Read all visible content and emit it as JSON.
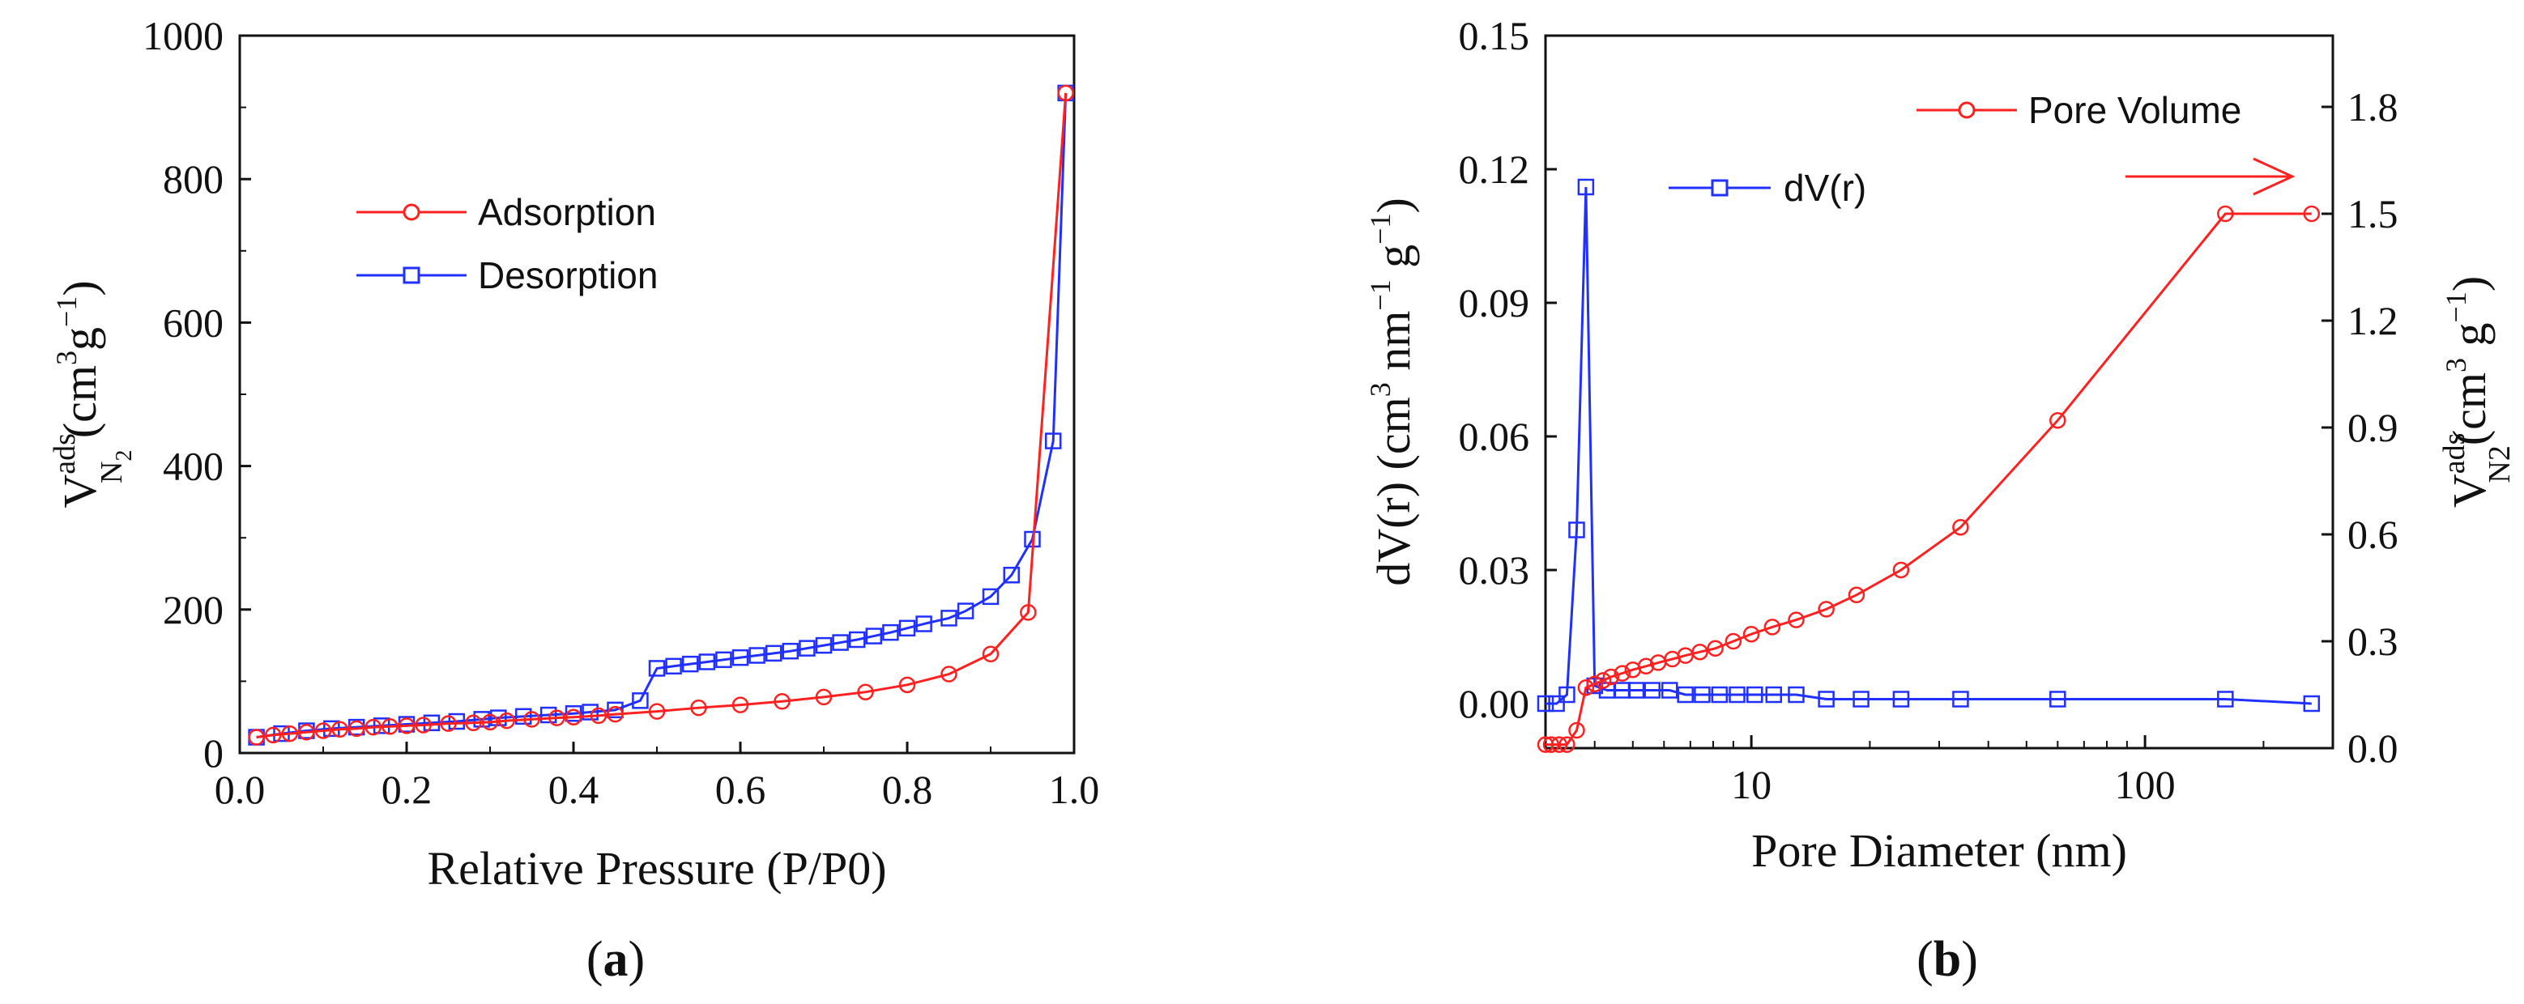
{
  "colors": {
    "adsorption": "#ff2020",
    "desorption": "#2030ff",
    "axis": "#111111"
  },
  "chart_data": [
    {
      "type": "line",
      "panel": "a",
      "panel_label": "(a)",
      "panel_label_parts": {
        "open": "(",
        "letter": "a",
        "close": ")"
      },
      "xlabel": "Relative Pressure (P/P0)",
      "ylabel": {
        "main": "V",
        "sup": "ads",
        "sub": "N",
        "sub2": "2",
        "unit_open": " (cm",
        "unit_sup3": "3",
        "unit_g": "g",
        "unit_sup": "−1",
        "unit_close": ")"
      },
      "xlim": [
        0,
        1.0
      ],
      "ylim": [
        0,
        1000
      ],
      "xticks": [
        "0.0",
        "0.2",
        "0.4",
        "0.6",
        "0.8",
        "1.0"
      ],
      "xtick_values": [
        0,
        0.2,
        0.4,
        0.6,
        0.8,
        1.0
      ],
      "yticks": [
        "0",
        "200",
        "400",
        "600",
        "800",
        "1000"
      ],
      "ytick_values": [
        0,
        200,
        400,
        600,
        800,
        1000
      ],
      "legend": [
        "Adsorption",
        "Desorption"
      ],
      "series": [
        {
          "name": "Adsorption",
          "marker": "circle",
          "x": [
            0.02,
            0.04,
            0.06,
            0.08,
            0.1,
            0.12,
            0.14,
            0.16,
            0.18,
            0.2,
            0.22,
            0.25,
            0.28,
            0.3,
            0.32,
            0.35,
            0.38,
            0.4,
            0.43,
            0.45,
            0.5,
            0.55,
            0.6,
            0.65,
            0.7,
            0.75,
            0.8,
            0.85,
            0.9,
            0.945,
            0.99
          ],
          "y": [
            22,
            25,
            27,
            29,
            31,
            33,
            34,
            36,
            37,
            38,
            39,
            41,
            42,
            43,
            45,
            47,
            49,
            50,
            52,
            54,
            58,
            63,
            67,
            72,
            78,
            85,
            95,
            110,
            138,
            196,
            920
          ]
        },
        {
          "name": "Desorption",
          "marker": "square",
          "x": [
            0.02,
            0.05,
            0.08,
            0.11,
            0.14,
            0.17,
            0.2,
            0.23,
            0.26,
            0.29,
            0.31,
            0.34,
            0.37,
            0.4,
            0.42,
            0.45,
            0.48,
            0.5,
            0.52,
            0.54,
            0.56,
            0.58,
            0.6,
            0.62,
            0.64,
            0.66,
            0.68,
            0.7,
            0.72,
            0.74,
            0.76,
            0.78,
            0.8,
            0.82,
            0.85,
            0.87,
            0.9,
            0.925,
            0.95,
            0.975,
            0.99
          ],
          "y": [
            22,
            27,
            31,
            34,
            36,
            38,
            40,
            42,
            44,
            47,
            49,
            51,
            53,
            55,
            57,
            60,
            73,
            118,
            121,
            124,
            127,
            130,
            133,
            136,
            139,
            142,
            146,
            150,
            154,
            158,
            163,
            168,
            174,
            180,
            188,
            198,
            218,
            248,
            298,
            435,
            920
          ]
        }
      ]
    },
    {
      "type": "line",
      "panel": "b",
      "panel_label": "(b)",
      "panel_label_parts": {
        "open": "(",
        "letter": "b",
        "close": ")"
      },
      "xlabel": "Pore Diameter (nm)",
      "xscale": "log",
      "xlim": [
        3,
        300
      ],
      "xticks": [
        "10",
        "100"
      ],
      "xtick_values": [
        10,
        100
      ],
      "ylabel_left": {
        "pre": "dV(r) (cm",
        "sup3": "3",
        "mid": " nm",
        "sup1": "−1",
        "g": " g",
        "sup2": "−1",
        "close": ")"
      },
      "ylim_left": [
        -0.01,
        0.15
      ],
      "yticks_left": [
        "0.00",
        "0.03",
        "0.06",
        "0.09",
        "0.12",
        "0.15"
      ],
      "ytick_values_left": [
        0.0,
        0.03,
        0.06,
        0.09,
        0.12,
        0.15
      ],
      "ylabel_right": {
        "main": "V",
        "sup": "ads",
        "sub": "N2",
        "unit": "(cm",
        "unit_sup3": "3",
        "unit_g": " g",
        "unit_sup": "−1",
        "unit_close": ")"
      },
      "ylim_right": [
        0,
        2.0
      ],
      "yticks_right": [
        "0.0",
        "0.3",
        "0.6",
        "0.9",
        "1.2",
        "1.5",
        "1.8"
      ],
      "ytick_values_right": [
        0.0,
        0.3,
        0.6,
        0.9,
        1.2,
        1.5,
        1.8
      ],
      "legend": [
        "Pore Volume",
        "dV(r)"
      ],
      "series": [
        {
          "name": "dV(r)",
          "axis": "left",
          "marker": "square",
          "x": [
            3.0,
            3.2,
            3.4,
            3.6,
            3.8,
            4.0,
            4.3,
            4.7,
            5.1,
            5.6,
            6.2,
            6.8,
            7.5,
            8.3,
            9.2,
            10.2,
            11.4,
            13.0,
            15.5,
            19,
            24,
            34,
            60,
            160,
            265
          ],
          "y": [
            0.0,
            0.0,
            0.002,
            0.039,
            0.116,
            0.004,
            0.003,
            0.003,
            0.003,
            0.003,
            0.003,
            0.002,
            0.002,
            0.002,
            0.002,
            0.002,
            0.002,
            0.002,
            0.001,
            0.001,
            0.001,
            0.001,
            0.001,
            0.001,
            0.0
          ]
        },
        {
          "name": "Pore Volume",
          "axis": "right",
          "marker": "circle",
          "x": [
            3.0,
            3.1,
            3.25,
            3.4,
            3.6,
            3.8,
            4.0,
            4.2,
            4.4,
            4.7,
            5.0,
            5.4,
            5.8,
            6.3,
            6.8,
            7.4,
            8.1,
            9.0,
            10.0,
            11.3,
            13.0,
            15.5,
            18.5,
            24,
            34,
            60,
            160,
            265
          ],
          "y": [
            0.01,
            0.01,
            0.01,
            0.01,
            0.05,
            0.17,
            0.18,
            0.19,
            0.2,
            0.21,
            0.22,
            0.23,
            0.24,
            0.25,
            0.26,
            0.27,
            0.28,
            0.3,
            0.32,
            0.34,
            0.36,
            0.39,
            0.43,
            0.5,
            0.62,
            0.92,
            1.5,
            1.5
          ]
        }
      ]
    }
  ]
}
